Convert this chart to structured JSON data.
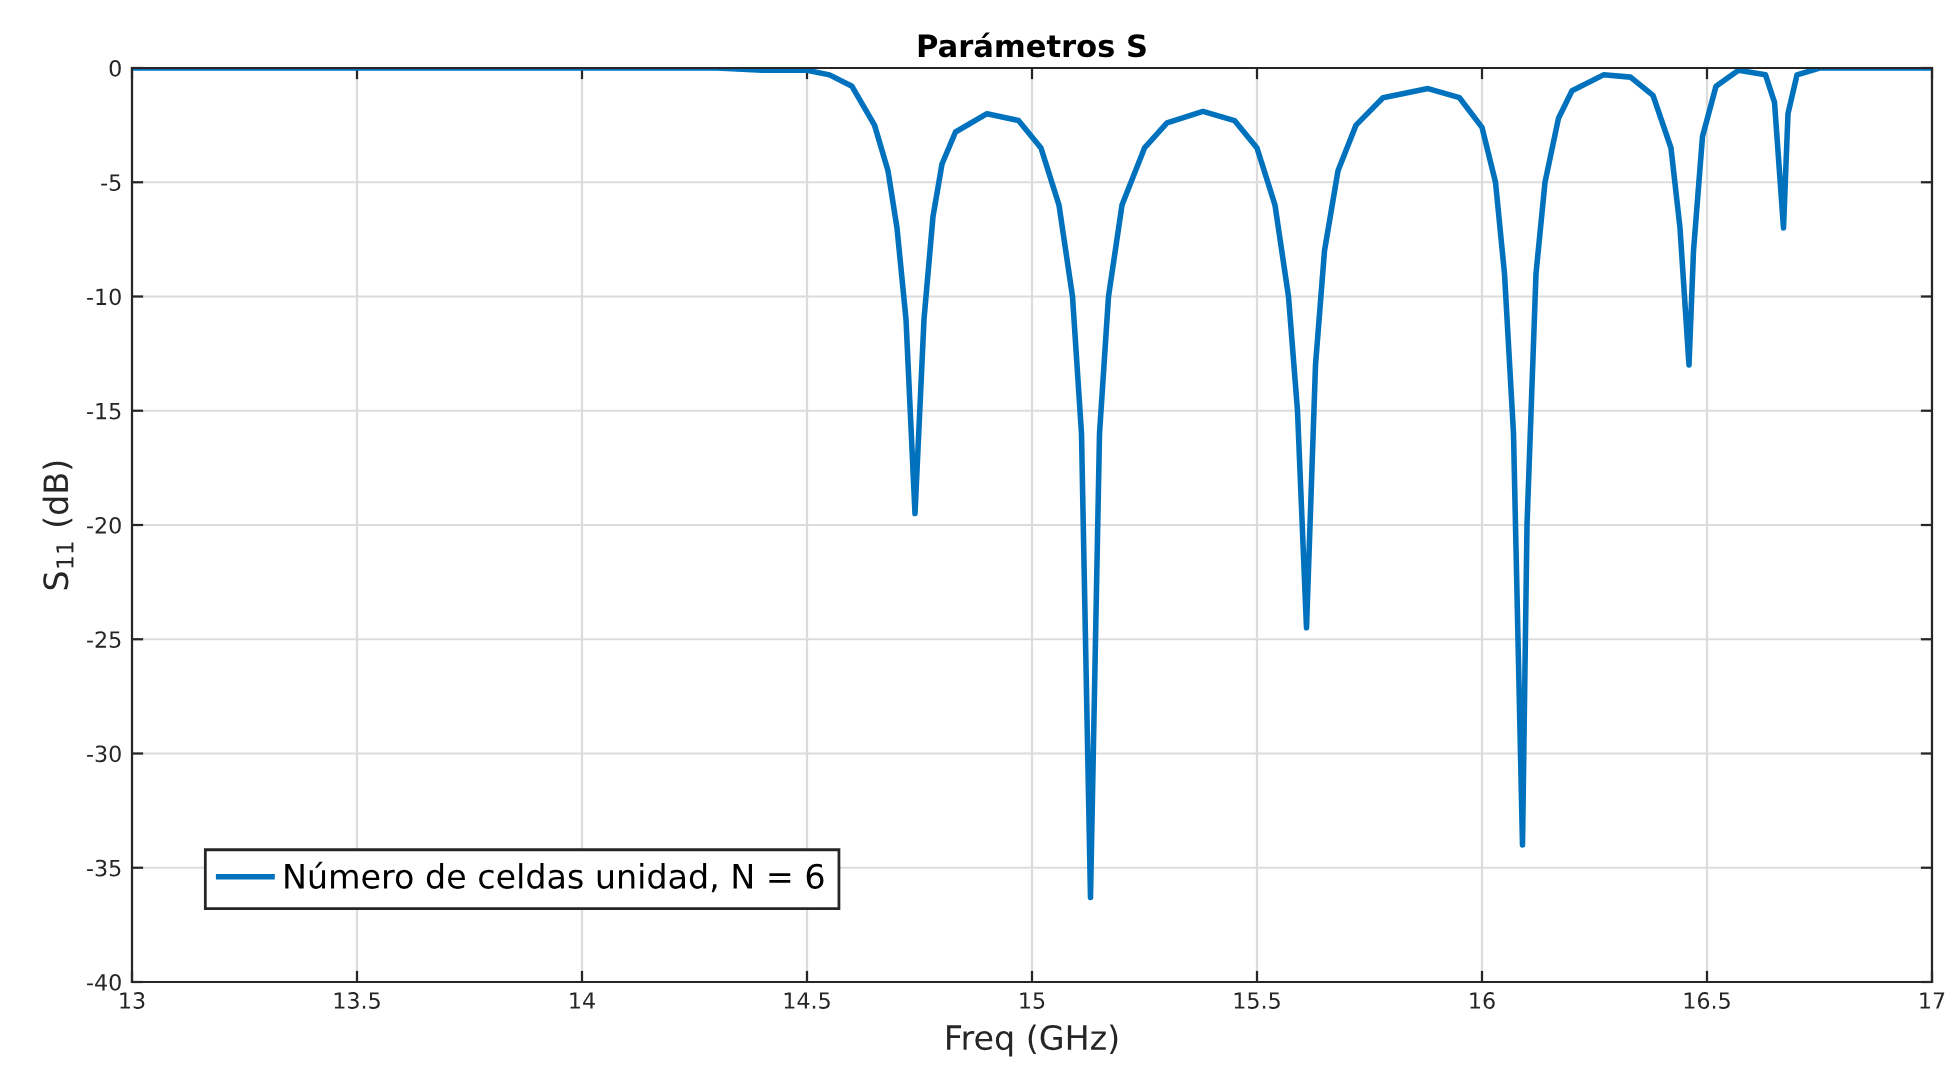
{
  "chart_data": {
    "type": "line",
    "title": "Parámetros S",
    "xlabel": "Freq (GHz)",
    "ylabel": "S$_{11}$ (dB)",
    "xlim": [
      13,
      17
    ],
    "ylim": [
      -40,
      0
    ],
    "xticks": [
      13,
      13.5,
      14,
      14.5,
      15,
      15.5,
      16,
      16.5,
      17
    ],
    "yticks": [
      -40,
      -35,
      -30,
      -25,
      -20,
      -15,
      -10,
      -5,
      0
    ],
    "grid": true,
    "legend": "bottom left",
    "line_style": "solid",
    "marker": "none",
    "series": [
      {
        "name": "Número de celdas unidad, N = 6",
        "color": "#0072bd",
        "x": [
          13,
          14,
          14.3,
          14.4,
          14.5,
          14.55,
          14.6,
          14.65,
          14.68,
          14.7,
          14.72,
          14.74,
          14.76,
          14.78,
          14.8,
          14.83,
          14.9,
          14.97,
          15.02,
          15.06,
          15.09,
          15.11,
          15.13,
          15.15,
          15.17,
          15.2,
          15.25,
          15.3,
          15.38,
          15.45,
          15.5,
          15.54,
          15.57,
          15.59,
          15.61,
          15.63,
          15.65,
          15.68,
          15.72,
          15.78,
          15.88,
          15.95,
          16.0,
          16.03,
          16.05,
          16.07,
          16.09,
          16.1,
          16.12,
          16.14,
          16.17,
          16.2,
          16.27,
          16.33,
          16.38,
          16.42,
          16.44,
          16.46,
          16.47,
          16.49,
          16.52,
          16.57,
          16.63,
          16.65,
          16.67,
          16.68,
          16.7,
          16.75,
          17
        ],
        "values": [
          0,
          0,
          0,
          -0.1,
          -0.1,
          -0.3,
          -0.8,
          -2.5,
          -4.5,
          -7,
          -11,
          -19.5,
          -11,
          -6.5,
          -4.2,
          -2.8,
          -2.0,
          -2.3,
          -3.5,
          -6,
          -10,
          -16,
          -36.3,
          -16,
          -10,
          -6,
          -3.5,
          -2.4,
          -1.9,
          -2.3,
          -3.5,
          -6,
          -10,
          -15,
          -24.5,
          -13,
          -8,
          -4.5,
          -2.5,
          -1.3,
          -0.9,
          -1.3,
          -2.6,
          -5,
          -9,
          -16,
          -34,
          -20,
          -9,
          -5,
          -2.2,
          -1.0,
          -0.3,
          -0.4,
          -1.2,
          -3.5,
          -7,
          -13,
          -8,
          -3,
          -0.8,
          -0.1,
          -0.3,
          -1.5,
          -7,
          -2,
          -0.3,
          0,
          0
        ]
      }
    ]
  }
}
